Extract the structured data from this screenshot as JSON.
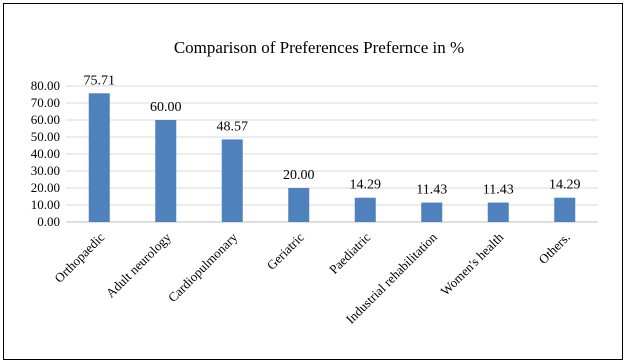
{
  "chart_data": {
    "type": "bar",
    "title": "Comparison of Preferences Prefernce in %",
    "categories": [
      "Orthopaedic",
      "Adult neurology",
      "Cardiopulmonary",
      "Geriatric",
      "Paediatric",
      "Industrial rehabilitation",
      "Women's health",
      "Others."
    ],
    "values": [
      75.71,
      60.0,
      48.57,
      20.0,
      14.29,
      11.43,
      11.43,
      14.29
    ],
    "value_labels": [
      "75.71",
      "60.00",
      "48.57",
      "20.00",
      "14.29",
      "11.43",
      "11.43",
      "14.29"
    ],
    "y_ticks": [
      "0.00",
      "10.00",
      "20.00",
      "30.00",
      "40.00",
      "50.00",
      "60.00",
      "70.00",
      "80.00"
    ],
    "ylim": [
      0,
      80
    ],
    "grid": true,
    "legend": "none",
    "bar_color": "#4f81bd"
  }
}
